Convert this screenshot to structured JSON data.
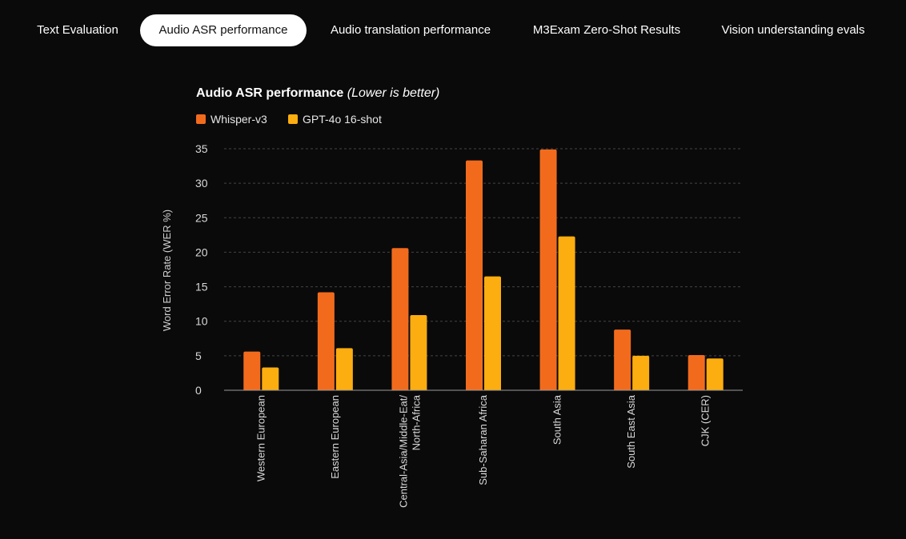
{
  "tabs": [
    {
      "label": "Text Evaluation",
      "active": false
    },
    {
      "label": "Audio ASR performance",
      "active": true
    },
    {
      "label": "Audio translation performance",
      "active": false
    },
    {
      "label": "M3Exam Zero-Shot Results",
      "active": false
    },
    {
      "label": "Vision understanding evals",
      "active": false
    }
  ],
  "colors": {
    "whisper": "#f26b1d",
    "gpt4o": "#fcad0f",
    "background": "#0a0a0a",
    "active_tab_bg": "#ffffff"
  },
  "chart_data": {
    "type": "bar",
    "title": "Audio ASR performance",
    "title_note": "(Lower is better)",
    "ylabel": "Word Error Rate (WER %)",
    "xlabel": "",
    "ylim": [
      0,
      35
    ],
    "yticks": [
      0,
      5,
      10,
      15,
      20,
      25,
      30,
      35
    ],
    "grid": true,
    "legend_position": "top-left",
    "categories": [
      "Western European",
      "Eastern European",
      "Central-Asia/Middle-Eat/ North-Africa",
      "Sub-Saharan Africa",
      "South Asia",
      "South East Asia",
      "CJK (CER)"
    ],
    "series": [
      {
        "name": "Whisper-v3",
        "color": "#f26b1d",
        "values": [
          5.6,
          14.2,
          20.6,
          33.3,
          34.9,
          8.8,
          5.1
        ]
      },
      {
        "name": "GPT-4o 16-shot",
        "color": "#fcad0f",
        "values": [
          3.3,
          6.1,
          10.9,
          16.5,
          22.3,
          5.0,
          4.6
        ]
      }
    ]
  }
}
